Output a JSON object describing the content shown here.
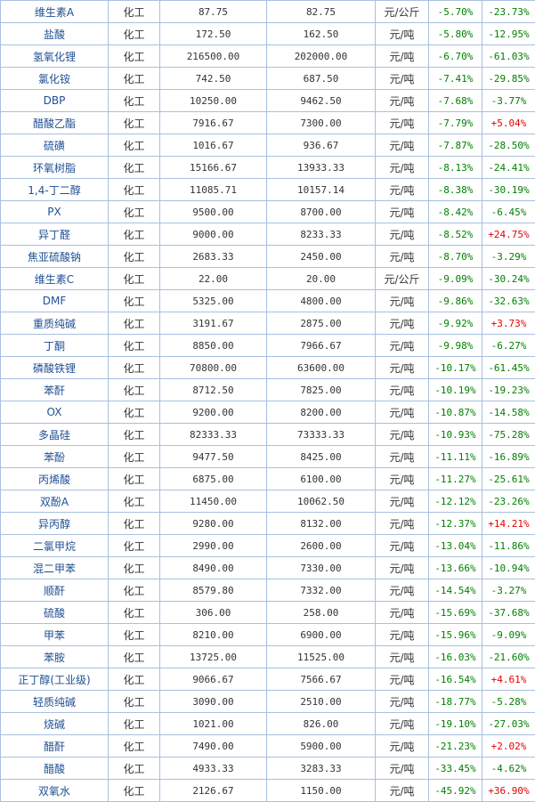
{
  "colors": {
    "up": "#e60000",
    "down": "#008000",
    "name": "#1f4f93",
    "border": "#a8c0e0"
  },
  "rows": [
    {
      "name": "维生素A",
      "category": "化工",
      "price_a": "87.75",
      "price_b": "82.75",
      "unit": "元/公斤",
      "change_1": "-5.70%",
      "change_2": "-23.73%"
    },
    {
      "name": "盐酸",
      "category": "化工",
      "price_a": "172.50",
      "price_b": "162.50",
      "unit": "元/吨",
      "change_1": "-5.80%",
      "change_2": "-12.95%"
    },
    {
      "name": "氢氧化锂",
      "category": "化工",
      "price_a": "216500.00",
      "price_b": "202000.00",
      "unit": "元/吨",
      "change_1": "-6.70%",
      "change_2": "-61.03%"
    },
    {
      "name": "氯化铵",
      "category": "化工",
      "price_a": "742.50",
      "price_b": "687.50",
      "unit": "元/吨",
      "change_1": "-7.41%",
      "change_2": "-29.85%"
    },
    {
      "name": "DBP",
      "category": "化工",
      "price_a": "10250.00",
      "price_b": "9462.50",
      "unit": "元/吨",
      "change_1": "-7.68%",
      "change_2": "-3.77%"
    },
    {
      "name": "醋酸乙酯",
      "category": "化工",
      "price_a": "7916.67",
      "price_b": "7300.00",
      "unit": "元/吨",
      "change_1": "-7.79%",
      "change_2": "+5.04%"
    },
    {
      "name": "硫磺",
      "category": "化工",
      "price_a": "1016.67",
      "price_b": "936.67",
      "unit": "元/吨",
      "change_1": "-7.87%",
      "change_2": "-28.50%"
    },
    {
      "name": "环氧树脂",
      "category": "化工",
      "price_a": "15166.67",
      "price_b": "13933.33",
      "unit": "元/吨",
      "change_1": "-8.13%",
      "change_2": "-24.41%"
    },
    {
      "name": "1,4-丁二醇",
      "category": "化工",
      "price_a": "11085.71",
      "price_b": "10157.14",
      "unit": "元/吨",
      "change_1": "-8.38%",
      "change_2": "-30.19%"
    },
    {
      "name": "PX",
      "category": "化工",
      "price_a": "9500.00",
      "price_b": "8700.00",
      "unit": "元/吨",
      "change_1": "-8.42%",
      "change_2": "-6.45%"
    },
    {
      "name": "异丁醛",
      "category": "化工",
      "price_a": "9000.00",
      "price_b": "8233.33",
      "unit": "元/吨",
      "change_1": "-8.52%",
      "change_2": "+24.75%"
    },
    {
      "name": "焦亚硫酸钠",
      "category": "化工",
      "price_a": "2683.33",
      "price_b": "2450.00",
      "unit": "元/吨",
      "change_1": "-8.70%",
      "change_2": "-3.29%"
    },
    {
      "name": "维生素C",
      "category": "化工",
      "price_a": "22.00",
      "price_b": "20.00",
      "unit": "元/公斤",
      "change_1": "-9.09%",
      "change_2": "-30.24%"
    },
    {
      "name": "DMF",
      "category": "化工",
      "price_a": "5325.00",
      "price_b": "4800.00",
      "unit": "元/吨",
      "change_1": "-9.86%",
      "change_2": "-32.63%"
    },
    {
      "name": "重质纯碱",
      "category": "化工",
      "price_a": "3191.67",
      "price_b": "2875.00",
      "unit": "元/吨",
      "change_1": "-9.92%",
      "change_2": "+3.73%"
    },
    {
      "name": "丁酮",
      "category": "化工",
      "price_a": "8850.00",
      "price_b": "7966.67",
      "unit": "元/吨",
      "change_1": "-9.98%",
      "change_2": "-6.27%"
    },
    {
      "name": "磷酸铁锂",
      "category": "化工",
      "price_a": "70800.00",
      "price_b": "63600.00",
      "unit": "元/吨",
      "change_1": "-10.17%",
      "change_2": "-61.45%"
    },
    {
      "name": "苯酐",
      "category": "化工",
      "price_a": "8712.50",
      "price_b": "7825.00",
      "unit": "元/吨",
      "change_1": "-10.19%",
      "change_2": "-19.23%"
    },
    {
      "name": "OX",
      "category": "化工",
      "price_a": "9200.00",
      "price_b": "8200.00",
      "unit": "元/吨",
      "change_1": "-10.87%",
      "change_2": "-14.58%"
    },
    {
      "name": "多晶硅",
      "category": "化工",
      "price_a": "82333.33",
      "price_b": "73333.33",
      "unit": "元/吨",
      "change_1": "-10.93%",
      "change_2": "-75.28%"
    },
    {
      "name": "苯酚",
      "category": "化工",
      "price_a": "9477.50",
      "price_b": "8425.00",
      "unit": "元/吨",
      "change_1": "-11.11%",
      "change_2": "-16.89%"
    },
    {
      "name": "丙烯酸",
      "category": "化工",
      "price_a": "6875.00",
      "price_b": "6100.00",
      "unit": "元/吨",
      "change_1": "-11.27%",
      "change_2": "-25.61%"
    },
    {
      "name": "双酚A",
      "category": "化工",
      "price_a": "11450.00",
      "price_b": "10062.50",
      "unit": "元/吨",
      "change_1": "-12.12%",
      "change_2": "-23.26%"
    },
    {
      "name": "异丙醇",
      "category": "化工",
      "price_a": "9280.00",
      "price_b": "8132.00",
      "unit": "元/吨",
      "change_1": "-12.37%",
      "change_2": "+14.21%"
    },
    {
      "name": "二氯甲烷",
      "category": "化工",
      "price_a": "2990.00",
      "price_b": "2600.00",
      "unit": "元/吨",
      "change_1": "-13.04%",
      "change_2": "-11.86%"
    },
    {
      "name": "混二甲苯",
      "category": "化工",
      "price_a": "8490.00",
      "price_b": "7330.00",
      "unit": "元/吨",
      "change_1": "-13.66%",
      "change_2": "-10.94%"
    },
    {
      "name": "顺酐",
      "category": "化工",
      "price_a": "8579.80",
      "price_b": "7332.00",
      "unit": "元/吨",
      "change_1": "-14.54%",
      "change_2": "-3.27%"
    },
    {
      "name": "硫酸",
      "category": "化工",
      "price_a": "306.00",
      "price_b": "258.00",
      "unit": "元/吨",
      "change_1": "-15.69%",
      "change_2": "-37.68%"
    },
    {
      "name": "甲苯",
      "category": "化工",
      "price_a": "8210.00",
      "price_b": "6900.00",
      "unit": "元/吨",
      "change_1": "-15.96%",
      "change_2": "-9.09%"
    },
    {
      "name": "苯胺",
      "category": "化工",
      "price_a": "13725.00",
      "price_b": "11525.00",
      "unit": "元/吨",
      "change_1": "-16.03%",
      "change_2": "-21.60%"
    },
    {
      "name": "正丁醇(工业级)",
      "category": "化工",
      "price_a": "9066.67",
      "price_b": "7566.67",
      "unit": "元/吨",
      "change_1": "-16.54%",
      "change_2": "+4.61%"
    },
    {
      "name": "轻质纯碱",
      "category": "化工",
      "price_a": "3090.00",
      "price_b": "2510.00",
      "unit": "元/吨",
      "change_1": "-18.77%",
      "change_2": "-5.28%"
    },
    {
      "name": "烧碱",
      "category": "化工",
      "price_a": "1021.00",
      "price_b": "826.00",
      "unit": "元/吨",
      "change_1": "-19.10%",
      "change_2": "-27.03%"
    },
    {
      "name": "醋酐",
      "category": "化工",
      "price_a": "7490.00",
      "price_b": "5900.00",
      "unit": "元/吨",
      "change_1": "-21.23%",
      "change_2": "+2.02%"
    },
    {
      "name": "醋酸",
      "category": "化工",
      "price_a": "4933.33",
      "price_b": "3283.33",
      "unit": "元/吨",
      "change_1": "-33.45%",
      "change_2": "-4.62%"
    },
    {
      "name": "双氧水",
      "category": "化工",
      "price_a": "2126.67",
      "price_b": "1150.00",
      "unit": "元/吨",
      "change_1": "-45.92%",
      "change_2": "+36.90%"
    }
  ]
}
